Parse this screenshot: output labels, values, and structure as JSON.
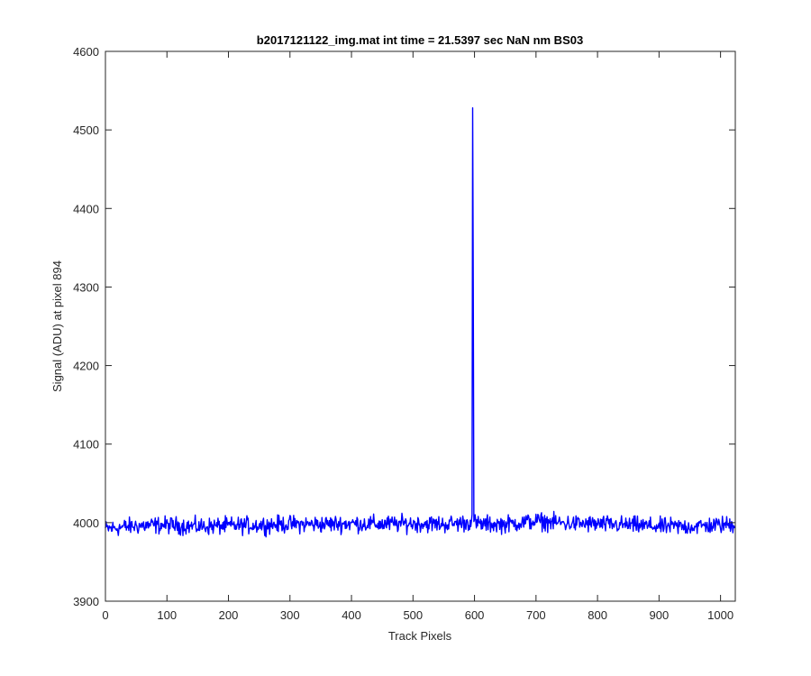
{
  "chart_data": {
    "type": "line",
    "title": "b2017121122_img.mat int time = 21.5397 sec  NaN nm BS03",
    "xlabel": "Track Pixels",
    "ylabel": "Signal (ADU) at pixel 894",
    "xlim": [
      0,
      1024
    ],
    "ylim": [
      3900,
      4600
    ],
    "xticks": [
      0,
      100,
      200,
      300,
      400,
      500,
      600,
      700,
      800,
      900,
      1000
    ],
    "yticks": [
      3900,
      4000,
      4100,
      4200,
      4300,
      4400,
      4500,
      4600
    ],
    "grid": false,
    "legend": "none",
    "series": [
      {
        "color": "#0000ff",
        "baseline": 3997,
        "noise_amplitude": 9,
        "x": [
          0,
          50,
          100,
          150,
          200,
          250,
          300,
          350,
          400,
          450,
          500,
          550,
          590,
          596,
          597,
          598,
          599,
          600,
          606,
          650,
          700,
          750,
          800,
          850,
          900,
          950,
          1000,
          1023
        ],
        "y": [
          3992,
          3996,
          3997,
          3995,
          3996,
          3997,
          3998,
          3998,
          3999,
          3998,
          3999,
          3998,
          4000,
          4004,
          4528,
          4300,
          4004,
          4000,
          3998,
          3998,
          4002,
          3999,
          3998,
          3997,
          3995,
          3995,
          3997,
          3998
        ]
      }
    ]
  }
}
